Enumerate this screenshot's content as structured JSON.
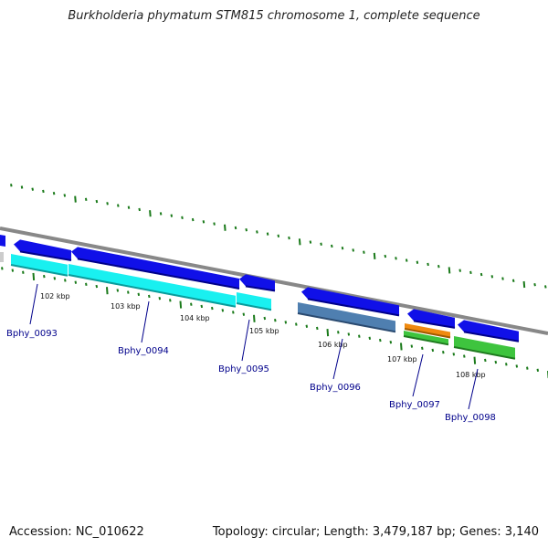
{
  "title": "Burkholderia phymatum STM815 chromosome 1, complete sequence",
  "footer": {
    "accession": "Accession: NC_010622",
    "summary": "Topology: circular; Length: 3,479,187 bp; Genes: 3,140"
  },
  "colors": {
    "backbone": "#888888",
    "gene": "#1010e8",
    "cds_cyan": "#19f0f0",
    "cds_steel": "#4f7fb0",
    "cds_orange": "#f08a10",
    "cds_green": "#3ec43e",
    "tick": "#1a7a1a",
    "label": "#00008b"
  },
  "scale_labels": [
    "102 kbp",
    "103 kbp",
    "104 kbp",
    "105 kbp",
    "106 kbp",
    "107 kbp",
    "108 kbp"
  ],
  "loci": [
    "Bphy_0093",
    "Bphy_0094",
    "Bphy_0095",
    "Bphy_0096",
    "Bphy_0097",
    "Bphy_0098"
  ]
}
